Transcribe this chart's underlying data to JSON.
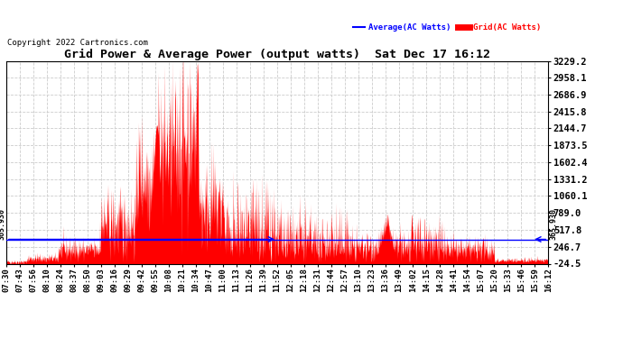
{
  "title": "Grid Power & Average Power (output watts)  Sat Dec 17 16:12",
  "copyright": "Copyright 2022 Cartronics.com",
  "legend_avg": "Average(AC Watts)",
  "legend_grid": "Grid(AC Watts)",
  "avg_color": "#0000FF",
  "grid_color": "#FF0000",
  "background_color": "#FFFFFF",
  "plot_bg_color": "#FFFFFF",
  "ymin": -24.5,
  "ymax": 3229.2,
  "yticks": [
    3229.2,
    2958.1,
    2686.9,
    2415.8,
    2144.7,
    1873.5,
    1602.4,
    1331.2,
    1060.1,
    789.0,
    517.8,
    246.7,
    -24.5
  ],
  "avg_line_y": 365.93,
  "avg_annotation": "365.930",
  "x_tick_labels": [
    "07:30",
    "07:43",
    "07:56",
    "08:10",
    "08:24",
    "08:37",
    "08:50",
    "09:03",
    "09:16",
    "09:29",
    "09:42",
    "09:55",
    "10:08",
    "10:21",
    "10:34",
    "10:47",
    "11:00",
    "11:13",
    "11:26",
    "11:39",
    "11:52",
    "12:05",
    "12:18",
    "12:31",
    "12:44",
    "12:57",
    "13:10",
    "13:23",
    "13:36",
    "13:49",
    "14:02",
    "14:15",
    "14:28",
    "14:41",
    "14:54",
    "15:07",
    "15:20",
    "15:33",
    "15:46",
    "15:59",
    "16:12"
  ],
  "grid_line_color": "#CCCCCC",
  "grid_linestyle": "--",
  "title_fontsize": 9.5,
  "copyright_fontsize": 6.5,
  "tick_fontsize": 6.5,
  "ytick_fontsize": 7.5
}
